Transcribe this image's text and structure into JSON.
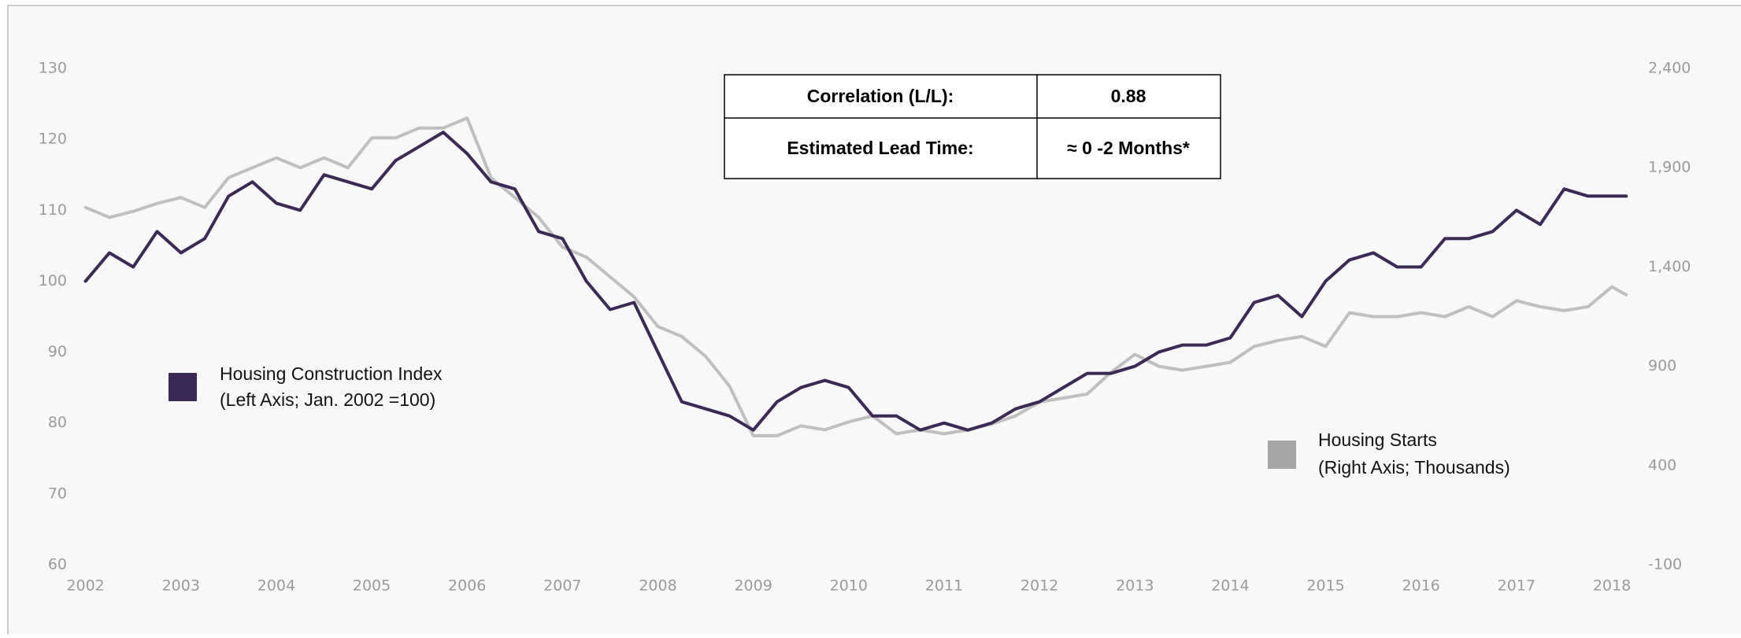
{
  "chart_data": {
    "type": "line",
    "x": [
      2002.0,
      2002.25,
      2002.5,
      2002.75,
      2003.0,
      2003.25,
      2003.5,
      2003.75,
      2004.0,
      2004.25,
      2004.5,
      2004.75,
      2005.0,
      2005.25,
      2005.5,
      2005.75,
      2006.0,
      2006.25,
      2006.5,
      2006.75,
      2007.0,
      2007.25,
      2007.5,
      2007.75,
      2008.0,
      2008.25,
      2008.5,
      2008.75,
      2009.0,
      2009.25,
      2009.5,
      2009.75,
      2010.0,
      2010.25,
      2010.5,
      2010.75,
      2011.0,
      2011.25,
      2011.5,
      2011.75,
      2012.0,
      2012.25,
      2012.5,
      2012.75,
      2013.0,
      2013.25,
      2013.5,
      2013.75,
      2014.0,
      2014.25,
      2014.5,
      2014.75,
      2015.0,
      2015.25,
      2015.5,
      2015.75,
      2016.0,
      2016.25,
      2016.5,
      2016.75,
      2017.0,
      2017.25,
      2017.5,
      2017.75,
      2018.0,
      2018.15
    ],
    "series": [
      {
        "name": "Housing Starts",
        "legend_note": "(Right Axis; Thousands)",
        "color": "#bfbfbf",
        "legend_color": "#a6a6a6",
        "axis": "y2",
        "values": [
          1700,
          1650,
          1680,
          1720,
          1750,
          1700,
          1850,
          1900,
          1950,
          1900,
          1950,
          1900,
          2050,
          2050,
          2100,
          2100,
          2150,
          1850,
          1750,
          1650,
          1500,
          1450,
          1350,
          1250,
          1100,
          1050,
          950,
          800,
          550,
          550,
          600,
          580,
          620,
          650,
          560,
          580,
          560,
          580,
          610,
          650,
          720,
          740,
          760,
          870,
          960,
          900,
          880,
          900,
          920,
          1000,
          1030,
          1050,
          1000,
          1170,
          1150,
          1150,
          1170,
          1150,
          1200,
          1150,
          1230,
          1200,
          1180,
          1200,
          1300,
          1260
        ]
      },
      {
        "name": "Housing Construction Index",
        "legend_note": "(Left Axis; Jan. 2002 =100)",
        "color": "#3a2a55",
        "legend_color": "#3a2a55",
        "axis": "y",
        "values": [
          100,
          104,
          102,
          107,
          104,
          106,
          112,
          114,
          111,
          110,
          115,
          114,
          113,
          117,
          119,
          121,
          118,
          114,
          113,
          107,
          106,
          100,
          96,
          97,
          90,
          83,
          82,
          81,
          79,
          83,
          85,
          86,
          85,
          81,
          81,
          79,
          80,
          79,
          80,
          82,
          83,
          85,
          87,
          87,
          88,
          90,
          91,
          91,
          92,
          97,
          98,
          95,
          100,
          103,
          104,
          102,
          102,
          106,
          106,
          107,
          110,
          108,
          113,
          112,
          112,
          112
        ]
      }
    ],
    "xlim": [
      2002,
      2018.2
    ],
    "xticks": [
      2002,
      2003,
      2004,
      2005,
      2006,
      2007,
      2008,
      2009,
      2010,
      2011,
      2012,
      2013,
      2014,
      2015,
      2016,
      2017,
      2018
    ],
    "ylim": [
      60,
      130
    ],
    "yticks": [
      60,
      70,
      80,
      90,
      100,
      110,
      120,
      130
    ],
    "y2lim": [
      -100,
      2400
    ],
    "y2ticks": [
      -100,
      400,
      900,
      {
        "value": 1400,
        "label": "1,400"
      },
      {
        "value": 1900,
        "label": "1,900"
      },
      {
        "value": 2400,
        "label": "2,400"
      }
    ],
    "table": {
      "rows": [
        [
          "Correlation (L/L):",
          "0.88"
        ],
        [
          "Estimated Lead Time:",
          "≈ 0 -2  Months*"
        ]
      ]
    }
  }
}
